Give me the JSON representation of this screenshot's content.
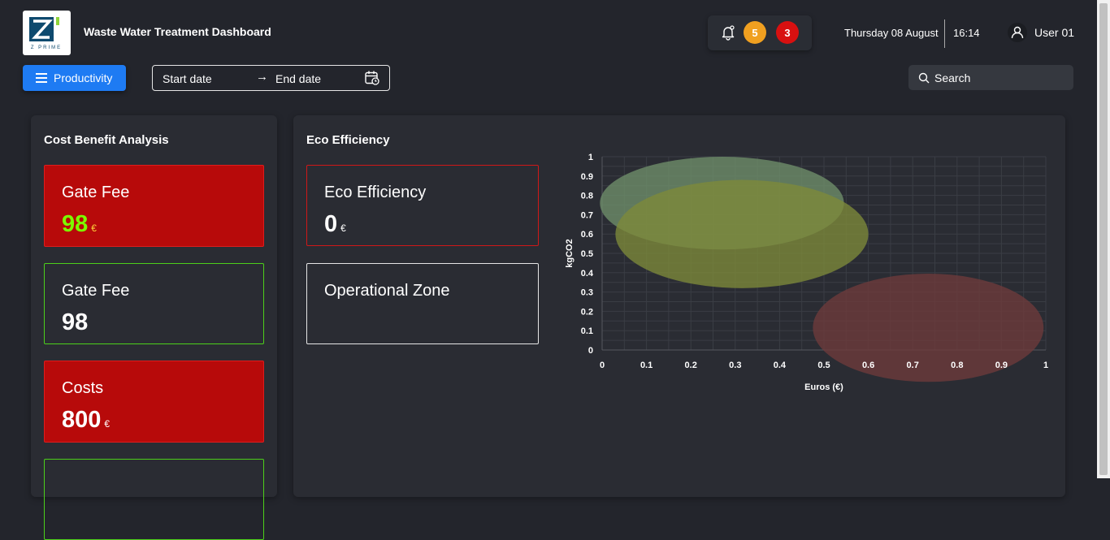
{
  "header": {
    "logo_text": "Z PRIME",
    "title": "Waste Water Treatment Dashboard",
    "notifications": {
      "warning_count": "5",
      "alert_count": "3",
      "warning_color": "#f0a020",
      "alert_color": "#d81010"
    },
    "date": "Thursday 08 August",
    "time": "16:14",
    "user": "User 01"
  },
  "toolbar": {
    "productivity_label": "Productivity",
    "start_date_placeholder": "Start date",
    "arrow": "→",
    "end_date_placeholder": "End date",
    "search_placeholder": "Search"
  },
  "cost_benefit": {
    "title": "Cost Benefit Analysis",
    "cards": [
      {
        "label": "Gate Fee",
        "value": "98",
        "unit": "€",
        "style": "red",
        "value_color": "#7cfc00"
      },
      {
        "label": "Gate Fee",
        "value": "98",
        "unit": "",
        "style": "outline-green",
        "value_color": "#ffffff"
      },
      {
        "label": "Costs",
        "value": "800",
        "unit": "€",
        "style": "red",
        "value_color": "#ffffff"
      },
      {
        "label": "",
        "value": "",
        "unit": "",
        "style": "outline-green",
        "value_color": "#ffffff"
      }
    ]
  },
  "eco": {
    "title": "Eco Efficiency",
    "cards": [
      {
        "label": "Eco Efficiency",
        "value": "0",
        "unit": "€",
        "style": "outline-red"
      },
      {
        "label": "Operational Zone",
        "value": "",
        "unit": "",
        "style": "outline-white"
      }
    ]
  },
  "chart_data": {
    "type": "scatter",
    "xlabel": "Euros (€)",
    "ylabel": "kgCO2",
    "xlim": [
      0,
      1
    ],
    "ylim": [
      0,
      1
    ],
    "x_ticks": [
      "0",
      "0.1",
      "0.2",
      "0.3",
      "0.4",
      "0.5",
      "0.6",
      "0.7",
      "0.8",
      "0.9",
      "1"
    ],
    "y_ticks": [
      "0",
      "0.1",
      "0.2",
      "0.3",
      "0.4",
      "0.5",
      "0.6",
      "0.7",
      "0.8",
      "0.9",
      "1"
    ],
    "grid": true,
    "series": [
      {
        "x": 0.27,
        "y": 0.76,
        "rx": 0.275,
        "ry": 0.24,
        "color": "#6f8f6a"
      },
      {
        "x": 0.315,
        "y": 0.6,
        "rx": 0.285,
        "ry": 0.28,
        "color": "#7e8a3a"
      },
      {
        "x": 0.735,
        "y": 0.115,
        "rx": 0.26,
        "ry": 0.28,
        "color": "#6e3b3b"
      }
    ]
  },
  "colors": {
    "accent": "#1e7bf3",
    "red_card": "#b70a0a",
    "green_outline": "#4cd01a",
    "background": "#23252c"
  }
}
